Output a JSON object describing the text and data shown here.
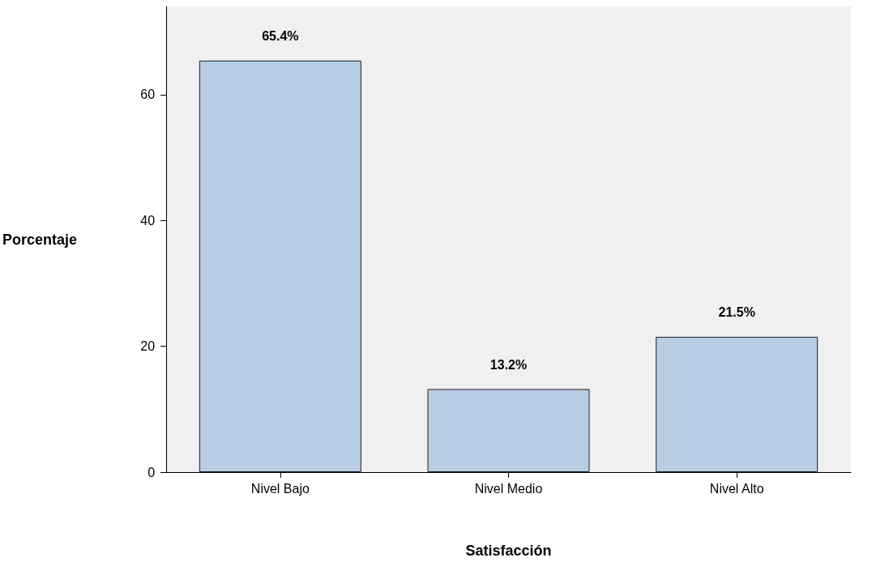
{
  "chart_data": {
    "type": "bar",
    "xlabel": "Satisfacción",
    "ylabel": "Porcentaje",
    "categories": [
      "Nivel Bajo",
      "Nivel Medio",
      "Nivel Alto"
    ],
    "values": [
      65.4,
      13.2,
      21.5
    ],
    "color": "#b8cce4",
    "value_labels": [
      "65.4%",
      "13.2%",
      "21.5%"
    ],
    "ylim": [
      0,
      74
    ],
    "yticks": [
      0,
      20,
      40,
      60
    ],
    "grid": false
  }
}
